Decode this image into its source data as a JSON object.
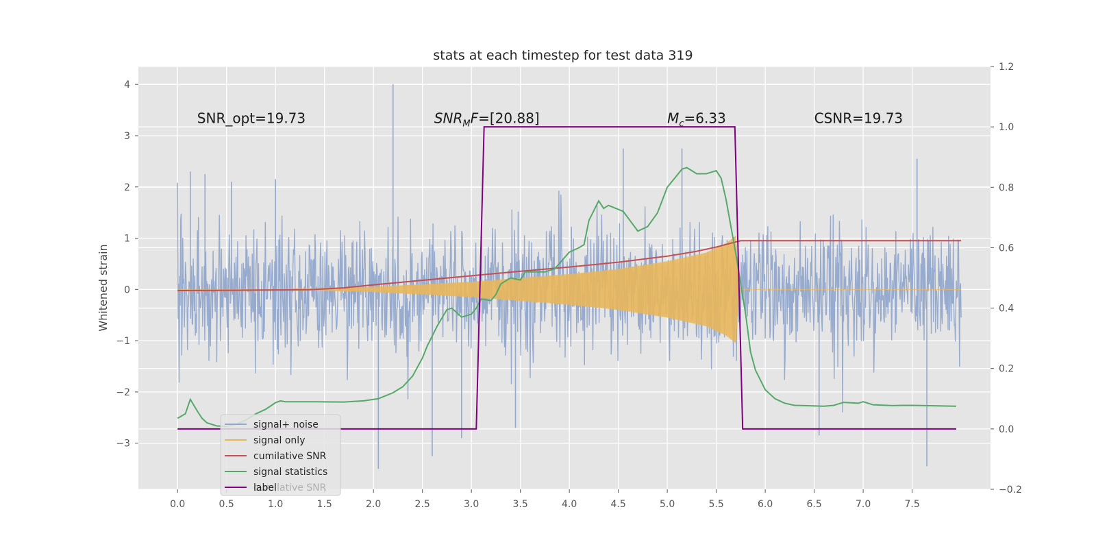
{
  "chart_data": {
    "type": "line",
    "title": "stats at each timestep for test data 319",
    "ylabel": "Whitened strain",
    "xlabel": "",
    "xlim": [
      -0.4,
      8.3
    ],
    "ylim": [
      -3.9,
      4.35
    ],
    "y2lim": [
      -0.2,
      1.2
    ],
    "grid": true,
    "legend_position": "lower-left",
    "x_ticks": [
      "0.0",
      "0.5",
      "1.0",
      "1.5",
      "2.0",
      "2.5",
      "3.0",
      "3.5",
      "4.0",
      "4.5",
      "5.0",
      "5.5",
      "6.0",
      "6.5",
      "7.0",
      "7.5"
    ],
    "x_tick_values": [
      0,
      0.5,
      1,
      1.5,
      2,
      2.5,
      3,
      3.5,
      4,
      4.5,
      5,
      5.5,
      6,
      6.5,
      7,
      7.5
    ],
    "y_ticks": [
      "4",
      "3",
      "2",
      "1",
      "0",
      "−1",
      "−2",
      "−3"
    ],
    "y_tick_values": [
      4,
      3,
      2,
      1,
      0,
      -1,
      -2,
      -3
    ],
    "y2_ticks": [
      "1.2",
      "1.0",
      "0.8",
      "0.6",
      "0.4",
      "0.2",
      "0.0",
      "−0.2"
    ],
    "y2_tick_values": [
      1.2,
      1.0,
      0.8,
      0.6,
      0.4,
      0.2,
      0.0,
      -0.2
    ],
    "annotations": [
      {
        "name": "snr-opt",
        "text": "SNR_opt=19.73",
        "x": 0.2,
        "y": 3.25
      },
      {
        "name": "snr-mf",
        "text": "SNR_MF=[20.88]",
        "x": 2.62,
        "y": 3.25,
        "math": true,
        "base": "SNR",
        "sub": "M",
        "rest": "F=[20.88]"
      },
      {
        "name": "chirp-mass",
        "text": "M_c=6.33",
        "x": 5.0,
        "y": 3.25,
        "math": true,
        "base": "M",
        "sub": "c",
        "rest": "=6.33"
      },
      {
        "name": "csnr",
        "text": "CSNR=19.73",
        "x": 6.5,
        "y": 3.25
      }
    ],
    "series": [
      {
        "name": "signal+ noise",
        "axis": "left",
        "color": "#92a8cd",
        "kind": "noise",
        "x_range": [
          0,
          8.0
        ],
        "typical_envelope": [
          -1.5,
          1.6
        ],
        "spikes": [
          [
            0.13,
            2.3
          ],
          [
            0.28,
            2.25
          ],
          [
            0.55,
            2.1
          ],
          [
            1.0,
            2.15
          ],
          [
            2.2,
            4.0
          ],
          [
            2.05,
            -3.5
          ],
          [
            2.6,
            -3.25
          ],
          [
            2.9,
            -2.9
          ],
          [
            3.45,
            -2.7
          ],
          [
            6.55,
            -2.85
          ],
          [
            7.65,
            -3.45
          ],
          [
            7.55,
            2.55
          ],
          [
            4.55,
            2.75
          ],
          [
            5.15,
            2.75
          ]
        ]
      },
      {
        "name": "signal only",
        "axis": "left",
        "color": "#e8b65a",
        "kind": "chirp",
        "x_range": [
          0,
          8.0
        ],
        "envelope": [
          [
            1.0,
            0.0
          ],
          [
            2.0,
            0.05
          ],
          [
            3.0,
            0.15
          ],
          [
            4.0,
            0.3
          ],
          [
            4.5,
            0.4
          ],
          [
            5.0,
            0.55
          ],
          [
            5.4,
            0.72
          ],
          [
            5.6,
            0.9
          ],
          [
            5.7,
            1.05
          ],
          [
            5.74,
            0.0
          ],
          [
            8.0,
            0.0
          ]
        ]
      },
      {
        "name": "cumilative SNR",
        "axis": "right",
        "color": "#c44e52",
        "x": [
          0,
          0.5,
          1,
          1.35,
          1.7,
          2,
          2.5,
          3,
          3.5,
          4,
          4.5,
          5,
          5.3,
          5.5,
          5.65,
          5.75,
          8.0
        ],
        "values": [
          0.458,
          0.459,
          0.46,
          0.461,
          0.467,
          0.477,
          0.492,
          0.507,
          0.522,
          0.536,
          0.552,
          0.572,
          0.588,
          0.602,
          0.615,
          0.623,
          0.623
        ]
      },
      {
        "name": "signal statistics",
        "axis": "right",
        "color": "#55a868",
        "x": [
          0,
          0.08,
          0.13,
          0.2,
          0.25,
          0.3,
          0.4,
          0.5,
          0.6,
          0.7,
          0.8,
          0.9,
          1.0,
          1.05,
          1.1,
          1.2,
          1.4,
          1.7,
          1.9,
          2.05,
          2.2,
          2.3,
          2.4,
          2.5,
          2.55,
          2.65,
          2.75,
          2.8,
          2.9,
          3.0,
          3.05,
          3.1,
          3.2,
          3.25,
          3.3,
          3.4,
          3.5,
          3.55,
          3.65,
          3.75,
          3.85,
          4.0,
          4.1,
          4.15,
          4.2,
          4.3,
          4.35,
          4.4,
          4.55,
          4.7,
          4.8,
          4.9,
          5.0,
          5.1,
          5.15,
          5.2,
          5.25,
          5.3,
          5.4,
          5.5,
          5.55,
          5.6,
          5.7,
          5.8,
          5.85,
          5.9,
          6.0,
          6.1,
          6.2,
          6.3,
          6.4,
          6.6,
          6.7,
          6.8,
          6.95,
          7.0,
          7.1,
          7.3,
          7.4,
          7.5,
          7.95
        ],
        "values": [
          0.035,
          0.05,
          0.098,
          0.06,
          0.035,
          0.02,
          0.01,
          0.008,
          0.015,
          0.03,
          0.05,
          0.065,
          0.087,
          0.093,
          0.09,
          0.09,
          0.09,
          0.089,
          0.093,
          0.1,
          0.12,
          0.14,
          0.175,
          0.235,
          0.275,
          0.34,
          0.395,
          0.4,
          0.37,
          0.38,
          0.4,
          0.43,
          0.425,
          0.445,
          0.48,
          0.5,
          0.493,
          0.52,
          0.52,
          0.52,
          0.53,
          0.585,
          0.6,
          0.61,
          0.69,
          0.755,
          0.73,
          0.74,
          0.72,
          0.655,
          0.67,
          0.715,
          0.8,
          0.84,
          0.86,
          0.865,
          0.855,
          0.845,
          0.845,
          0.855,
          0.83,
          0.76,
          0.58,
          0.38,
          0.255,
          0.195,
          0.13,
          0.1,
          0.085,
          0.078,
          0.077,
          0.075,
          0.078,
          0.088,
          0.085,
          0.09,
          0.08,
          0.077,
          0.078,
          0.078,
          0.075
        ]
      },
      {
        "name": "label",
        "axis": "right",
        "color": "#800080",
        "x": [
          0,
          3.05,
          3.13,
          5.69,
          5.77,
          7.95
        ],
        "values": [
          0,
          0,
          1,
          1,
          0,
          0
        ]
      }
    ],
    "legend_ghost_text": "cumilative SNR"
  }
}
